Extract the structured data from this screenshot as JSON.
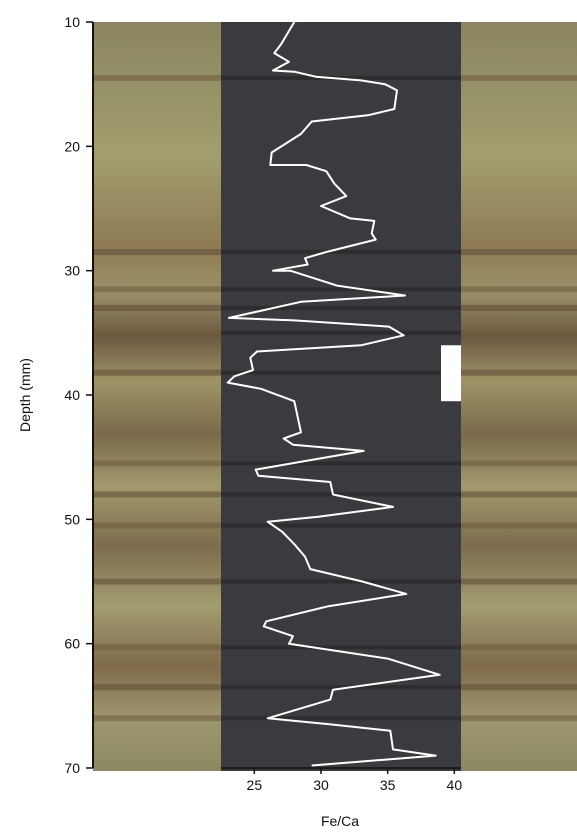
{
  "chart_data": {
    "type": "line",
    "title": "",
    "xlabel": "Fe/Ca",
    "ylabel": "Depth (mm)",
    "xlim": [
      22.5,
      40.5
    ],
    "ylim": [
      10,
      70
    ],
    "y_inverted": true,
    "x_ticks": [
      25,
      30,
      35,
      40
    ],
    "y_ticks": [
      10,
      20,
      30,
      40,
      50,
      60,
      70
    ],
    "x_tick_labels": [
      "25",
      "30",
      "35",
      "40"
    ],
    "y_tick_labels": [
      "10",
      "20",
      "30",
      "40",
      "50",
      "60",
      "70"
    ],
    "background": "core-photograph",
    "overlay_panel_color": "#3a3b3e",
    "line_color": "#ffffff",
    "marker": {
      "shape": "white-rectangle",
      "x_range": [
        39.0,
        40.5
      ],
      "depth_range": [
        36.0,
        40.5
      ]
    },
    "series": [
      {
        "x": [
          28.0,
          27.0,
          26.5,
          27.6,
          26.4,
          28.0,
          29.6,
          33.0,
          34.8,
          35.7,
          35.5,
          33.5,
          29.3,
          28.5,
          26.3,
          26.2,
          28.9,
          30.4,
          31.0,
          31.9,
          30.0,
          32.2,
          34.0,
          33.8,
          34.1,
          30.4,
          28.8,
          29.0,
          26.4,
          27.7,
          31.2,
          36.3,
          28.5,
          23.1,
          28.0,
          35.1,
          36.2,
          33.0,
          25.2,
          24.7,
          24.9,
          23.5,
          23.0,
          25.5,
          28.0,
          28.3,
          28.5,
          27.2,
          27.9,
          33.2,
          25.1,
          25.3,
          30.7,
          30.9,
          35.4,
          29.8,
          26.0,
          27.1,
          28.0,
          28.8,
          29.2,
          33.1,
          36.4,
          30.5,
          25.9,
          25.7,
          27.9,
          27.6,
          35.0,
          38.9,
          30.9,
          30.7,
          26.0,
          30.8,
          35.2,
          35.4,
          38.6,
          29.3
        ],
        "y": [
          10.0,
          11.8,
          12.5,
          13.2,
          13.9,
          14.0,
          14.4,
          14.7,
          15.0,
          15.5,
          17.0,
          17.5,
          18.0,
          19.0,
          20.5,
          21.5,
          21.5,
          22.0,
          23.0,
          24.0,
          24.8,
          25.8,
          26.0,
          27.0,
          27.5,
          28.5,
          29.0,
          29.5,
          30.0,
          30.0,
          31.2,
          32.0,
          32.5,
          33.8,
          34.0,
          34.5,
          35.2,
          36.0,
          36.5,
          37.0,
          38.0,
          38.5,
          39.0,
          39.5,
          40.5,
          42.0,
          43.0,
          43.5,
          44.0,
          44.5,
          46.0,
          46.5,
          47.0,
          48.0,
          49.0,
          49.8,
          50.2,
          51.0,
          52.0,
          53.0,
          54.0,
          55.0,
          56.0,
          57.0,
          58.2,
          58.6,
          59.4,
          60.0,
          61.2,
          62.5,
          63.7,
          64.5,
          66.0,
          66.5,
          67.0,
          68.5,
          69.0,
          69.8
        ]
      }
    ]
  }
}
